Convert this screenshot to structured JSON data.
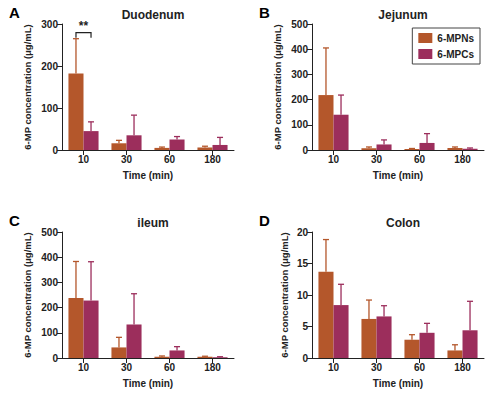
{
  "chart_data": [
    {
      "type": "bar",
      "panel": "A",
      "title": "Duodenum",
      "x_label": "Time (min)",
      "y_label": "6-MP concentration (μg/mL)",
      "categories": [
        "10",
        "30",
        "60",
        "180"
      ],
      "series": [
        {
          "name": "6-MPNs",
          "color": "#b4572b",
          "values": [
            182,
            16,
            5,
            6
          ],
          "errors": [
            83,
            7,
            2,
            3
          ]
        },
        {
          "name": "6-MPCs",
          "color": "#9c2e5c",
          "values": [
            45,
            35,
            25,
            12
          ],
          "errors": [
            22,
            48,
            7,
            18
          ]
        }
      ],
      "ylim": [
        0,
        300
      ],
      "yticks": [
        0,
        100,
        200,
        300
      ],
      "grid": false,
      "annotations": [
        {
          "text": "**",
          "category": "10",
          "between": [
            "6-MPNs",
            "6-MPCs"
          ]
        }
      ]
    },
    {
      "type": "bar",
      "panel": "B",
      "title": "Jejunum",
      "x_label": "Time (min)",
      "y_label": "6-MP concentration (μg/mL)",
      "categories": [
        "10",
        "30",
        "60",
        "180"
      ],
      "series": [
        {
          "name": "6-MPNs",
          "color": "#b4572b",
          "values": [
            218,
            7,
            4,
            8
          ],
          "errors": [
            187,
            5,
            2,
            4
          ]
        },
        {
          "name": "6-MPCs",
          "color": "#9c2e5c",
          "values": [
            140,
            22,
            28,
            5
          ],
          "errors": [
            78,
            18,
            37,
            3
          ]
        }
      ],
      "ylim": [
        0,
        500
      ],
      "yticks": [
        0,
        100,
        200,
        300,
        400,
        500
      ],
      "grid": false,
      "legend": "upper right"
    },
    {
      "type": "bar",
      "panel": "C",
      "title": "ileum",
      "x_label": "Time (min)",
      "y_label": "6-MP concentration (μg/mL)",
      "categories": [
        "10",
        "30",
        "60",
        "180"
      ],
      "series": [
        {
          "name": "6-MPNs",
          "color": "#b4572b",
          "values": [
            238,
            42,
            5,
            5
          ],
          "errors": [
            145,
            40,
            3,
            2
          ]
        },
        {
          "name": "6-MPCs",
          "color": "#9c2e5c",
          "values": [
            228,
            133,
            30,
            3
          ],
          "errors": [
            154,
            122,
            15,
            2
          ]
        }
      ],
      "ylim": [
        0,
        500
      ],
      "yticks": [
        0,
        100,
        200,
        300,
        400,
        500
      ],
      "grid": false
    },
    {
      "type": "bar",
      "panel": "D",
      "title": "Colon",
      "x_label": "Time (min)",
      "y_label": "6-MP concentration (μg/mL)",
      "categories": [
        "10",
        "30",
        "60",
        "180"
      ],
      "series": [
        {
          "name": "6-MPNs",
          "color": "#b4572b",
          "values": [
            13.7,
            6.2,
            2.9,
            1.2
          ],
          "errors": [
            5.1,
            3.0,
            0.8,
            0.9
          ]
        },
        {
          "name": "6-MPCs",
          "color": "#9c2e5c",
          "values": [
            8.4,
            6.6,
            4.0,
            4.4
          ],
          "errors": [
            3.3,
            1.7,
            1.5,
            4.6
          ]
        }
      ],
      "ylim": [
        0,
        20
      ],
      "yticks": [
        0,
        5,
        10,
        15,
        20
      ],
      "grid": false
    }
  ]
}
